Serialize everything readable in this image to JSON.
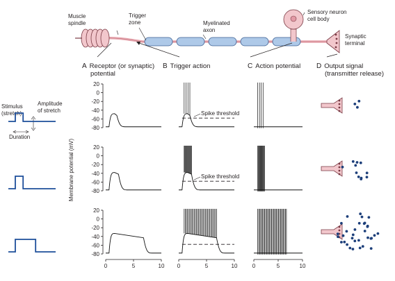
{
  "neuron": {
    "muscle_spindle": [
      "Muscle",
      "spindle"
    ],
    "trigger_zone": [
      "Trigger",
      "zone"
    ],
    "myelinated_axon": [
      "Myelinated",
      "axon"
    ],
    "sensory_neuron": [
      "Sensory neuron",
      "cell body"
    ],
    "synaptic_terminal": [
      "Synaptic",
      "terminal"
    ]
  },
  "columns": [
    {
      "letter": "A",
      "title": [
        "Receptor (or synaptic)",
        "potential"
      ]
    },
    {
      "letter": "B",
      "title": [
        "Trigger action"
      ]
    },
    {
      "letter": "C",
      "title": [
        "Action potential"
      ]
    },
    {
      "letter": "D",
      "title": [
        "Output signal",
        "(transmitter release)"
      ]
    }
  ],
  "stimulus_labels": {
    "stimulus": [
      "Stimulus",
      "(stretch)"
    ],
    "amplitude": [
      "Amplitude",
      "of stretch"
    ],
    "duration": "Duration"
  },
  "y_axis_label": "Membrane potential (mV)",
  "y_ticks": [
    "20",
    "0",
    "-20",
    "-40",
    "-60",
    "-80"
  ],
  "x_ticks": [
    "0",
    "5",
    "10"
  ],
  "spike_threshold_label": "Spike threshold",
  "colors": {
    "stimulus": "#1d4e9a",
    "axon": "#aec9e8",
    "neuron": "#f2c7cc",
    "vesicle": "#1d3f7a"
  },
  "rows": [
    {
      "stim_duration_ms": 2,
      "receptor_peak_mv": -48,
      "receptor_end_ms": 2.5,
      "spikes": 4,
      "vesicles": 3,
      "threshold_label": true
    },
    {
      "stim_duration_ms": 2,
      "receptor_peak_mv": -38,
      "receptor_end_ms": 2.8,
      "spikes": 12,
      "vesicles": 11,
      "threshold_label": true
    },
    {
      "stim_duration_ms": 7,
      "receptor_peak_mv": -33,
      "receptor_end_ms": 7.3,
      "spikes": 30,
      "vesicles": 33,
      "threshold_label": false
    }
  ],
  "chart_data": {
    "type": "line",
    "x_unit": "ms",
    "y_unit": "mV",
    "ylim": [
      -80,
      20
    ],
    "xlim": [
      0,
      10
    ],
    "threshold_mv": -58,
    "resting_mv": -78
  }
}
